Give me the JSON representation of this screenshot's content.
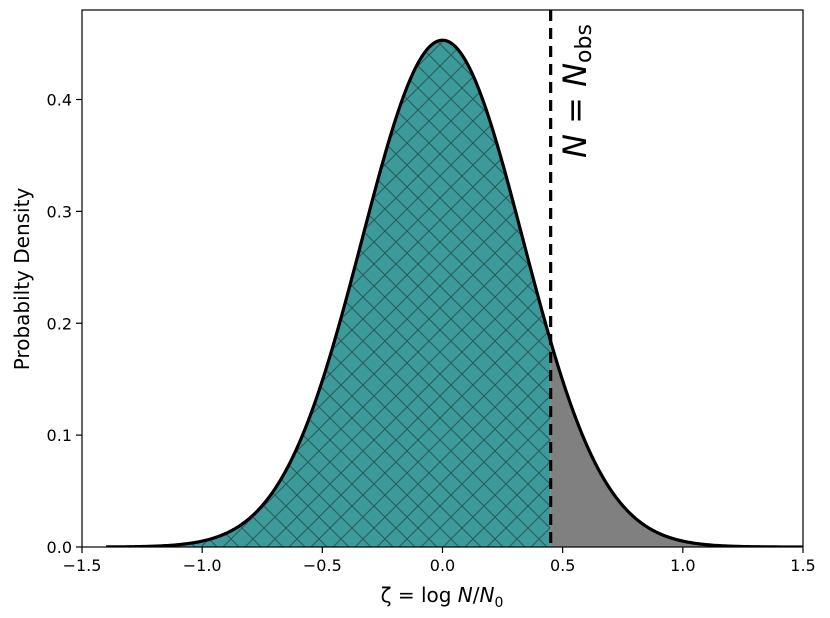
{
  "chart_data": {
    "type": "area",
    "xlabel": {
      "prefix": "ζ = log ",
      "italic1": "N",
      "mid": "/",
      "italic2": "N",
      "sub": "0"
    },
    "ylabel": "Probabilty Density",
    "xlim": [
      -1.5,
      1.5
    ],
    "ylim": [
      0.0,
      0.48
    ],
    "xticks": [
      -1.5,
      -1.0,
      -0.5,
      0.0,
      0.5,
      1.0,
      1.5
    ],
    "xtick_labels": [
      "−1.5",
      "−1.0",
      "−0.5",
      "0.0",
      "0.5",
      "1.0",
      "1.5"
    ],
    "yticks": [
      0.0,
      0.1,
      0.2,
      0.3,
      0.4
    ],
    "ytick_labels": [
      "0.0",
      "0.1",
      "0.2",
      "0.3",
      "0.4"
    ],
    "grid": false,
    "curve": {
      "x_range": [
        -1.4,
        1.5
      ],
      "mean": 0.0,
      "std": 0.335,
      "peak_density": 0.453
    },
    "threshold_x": 0.45,
    "region_below_color": "#3c9b9a",
    "region_above_color": "#808080",
    "hatch": "cross-diagonal",
    "annotation": {
      "italic1": "N",
      "eq": " = ",
      "italic2": "N",
      "sub": "obs"
    }
  }
}
